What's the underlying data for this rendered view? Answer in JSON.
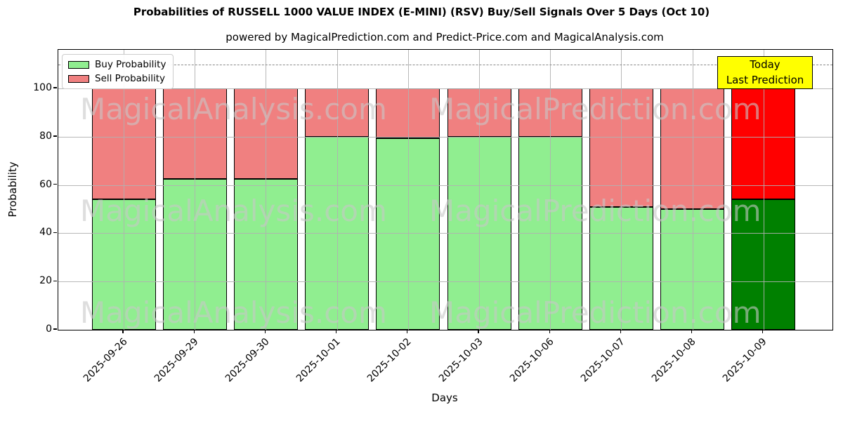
{
  "title": "Probabilities of RUSSELL 1000 VALUE INDEX (E-MINI) (RSV) Buy/Sell Signals Over 5 Days (Oct 10)",
  "subtitle": "powered by MagicalPrediction.com and Predict-Price.com and MagicalAnalysis.com",
  "annotation": {
    "line1": "Today",
    "line2": "Last Prediction",
    "bg_color": "#ffff00"
  },
  "legend": {
    "items": [
      {
        "label": "Buy Probability",
        "color": "#90ee90"
      },
      {
        "label": "Sell Probability",
        "color": "#f08080"
      }
    ]
  },
  "watermarks": {
    "left_text": "MagicalAnalysis.com",
    "right_text": "MagicalPrediction.com"
  },
  "chart_data": {
    "type": "bar",
    "stacked": true,
    "title": "Probabilities of RUSSELL 1000 VALUE INDEX (E-MINI) (RSV) Buy/Sell Signals Over 5 Days (Oct 10)",
    "xlabel": "Days",
    "ylabel": "Probability",
    "categories": [
      "2025-09-26",
      "2025-09-29",
      "2025-09-30",
      "2025-10-01",
      "2025-10-02",
      "2025-10-03",
      "2025-10-06",
      "2025-10-07",
      "2025-10-08",
      "2025-10-09"
    ],
    "series": [
      {
        "name": "Buy Probability",
        "values": [
          54,
          62.5,
          62.5,
          80,
          79.5,
          80,
          80,
          51,
          50,
          54
        ],
        "color": "#90ee90",
        "last_bar_color": "#008000"
      },
      {
        "name": "Sell Probability",
        "values": [
          46,
          37.5,
          37.5,
          20,
          20.5,
          20,
          20,
          49,
          50,
          46
        ],
        "color": "#f08080",
        "last_bar_color": "#ff0000"
      }
    ],
    "ylim": [
      0,
      116
    ],
    "yticks": [
      0,
      20,
      40,
      60,
      80,
      100
    ],
    "dashed_line_y": 110,
    "grid": true,
    "grid_above_bars": true,
    "legend_position": "upper left",
    "highlight_last_bar": true
  }
}
